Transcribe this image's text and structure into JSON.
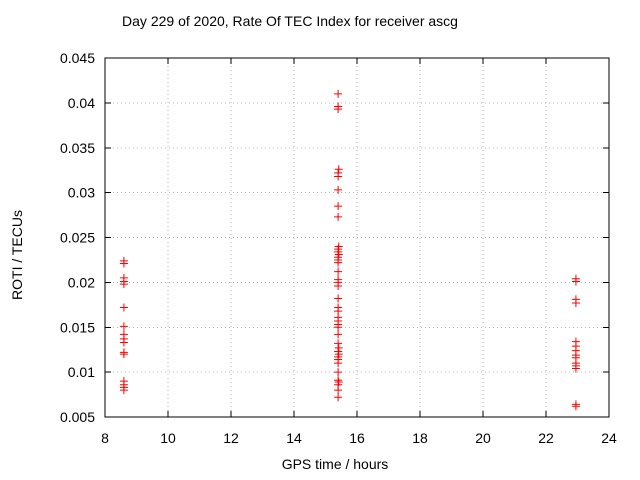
{
  "chart_data": {
    "type": "scatter",
    "title": "Day 229 of 2020, Rate Of TEC Index for receiver ascg",
    "xlabel": "GPS time / hours",
    "ylabel": "ROTI / TECUs",
    "xlim": [
      8,
      24
    ],
    "ylim": [
      0.005,
      0.045
    ],
    "grid": true,
    "legend_position": "none",
    "marker_shape": "plus",
    "marker_color": "#ff0000",
    "axis_color": "#000000",
    "grid_color": "#b4b4b4",
    "background_color": "#ffffff",
    "x_ticks": [
      {
        "value": 8,
        "label": "8"
      },
      {
        "value": 10,
        "label": "10"
      },
      {
        "value": 12,
        "label": "12"
      },
      {
        "value": 14,
        "label": "14"
      },
      {
        "value": 16,
        "label": "16"
      },
      {
        "value": 18,
        "label": "18"
      },
      {
        "value": 20,
        "label": "20"
      },
      {
        "value": 22,
        "label": "22"
      },
      {
        "value": 24,
        "label": "24"
      }
    ],
    "y_ticks": [
      {
        "value": 0.005,
        "label": "0.005"
      },
      {
        "value": 0.01,
        "label": "0.01"
      },
      {
        "value": 0.015,
        "label": "0.015"
      },
      {
        "value": 0.02,
        "label": "0.02"
      },
      {
        "value": 0.025,
        "label": "0.025"
      },
      {
        "value": 0.03,
        "label": "0.03"
      },
      {
        "value": 0.035,
        "label": "0.035"
      },
      {
        "value": 0.04,
        "label": "0.04"
      },
      {
        "value": 0.045,
        "label": "0.045"
      }
    ],
    "points": [
      [
        8.6,
        0.0224
      ],
      [
        8.6,
        0.0221
      ],
      [
        8.6,
        0.0205
      ],
      [
        8.6,
        0.0201
      ],
      [
        8.6,
        0.0198
      ],
      [
        8.6,
        0.0172
      ],
      [
        8.6,
        0.0151
      ],
      [
        8.6,
        0.0142
      ],
      [
        8.6,
        0.0137
      ],
      [
        8.6,
        0.0133
      ],
      [
        8.6,
        0.0122
      ],
      [
        8.6,
        0.012
      ],
      [
        8.6,
        0.009
      ],
      [
        8.6,
        0.0086
      ],
      [
        8.6,
        0.0083
      ],
      [
        8.6,
        0.008
      ],
      [
        15.4,
        0.041
      ],
      [
        15.4,
        0.0396
      ],
      [
        15.4,
        0.0393
      ],
      [
        15.42,
        0.0326
      ],
      [
        15.4,
        0.0322
      ],
      [
        15.4,
        0.0318
      ],
      [
        15.4,
        0.0303
      ],
      [
        15.4,
        0.0285
      ],
      [
        15.4,
        0.0273
      ],
      [
        15.42,
        0.024
      ],
      [
        15.4,
        0.0237
      ],
      [
        15.4,
        0.0234
      ],
      [
        15.42,
        0.0231
      ],
      [
        15.4,
        0.0228
      ],
      [
        15.4,
        0.0225
      ],
      [
        15.4,
        0.0222
      ],
      [
        15.4,
        0.0212
      ],
      [
        15.4,
        0.0203
      ],
      [
        15.4,
        0.02
      ],
      [
        15.4,
        0.0196
      ],
      [
        15.4,
        0.0182
      ],
      [
        15.4,
        0.0172
      ],
      [
        15.4,
        0.0168
      ],
      [
        15.4,
        0.0161
      ],
      [
        15.4,
        0.0157
      ],
      [
        15.4,
        0.0153
      ],
      [
        15.4,
        0.015
      ],
      [
        15.4,
        0.0142
      ],
      [
        15.4,
        0.0132
      ],
      [
        15.42,
        0.0127
      ],
      [
        15.4,
        0.0123
      ],
      [
        15.42,
        0.012
      ],
      [
        15.4,
        0.0117
      ],
      [
        15.4,
        0.0114
      ],
      [
        15.4,
        0.011
      ],
      [
        15.4,
        0.01
      ],
      [
        15.4,
        0.0091
      ],
      [
        15.42,
        0.0089
      ],
      [
        15.4,
        0.0086
      ],
      [
        15.4,
        0.008
      ],
      [
        15.4,
        0.0072
      ],
      [
        22.95,
        0.0204
      ],
      [
        22.95,
        0.0201
      ],
      [
        22.95,
        0.0181
      ],
      [
        22.95,
        0.0177
      ],
      [
        22.95,
        0.0134
      ],
      [
        22.95,
        0.0129
      ],
      [
        22.95,
        0.0124
      ],
      [
        22.95,
        0.0119
      ],
      [
        22.95,
        0.0116
      ],
      [
        22.95,
        0.011
      ],
      [
        22.95,
        0.0107
      ],
      [
        22.95,
        0.0104
      ],
      [
        22.95,
        0.0064
      ],
      [
        22.95,
        0.0062
      ]
    ]
  }
}
